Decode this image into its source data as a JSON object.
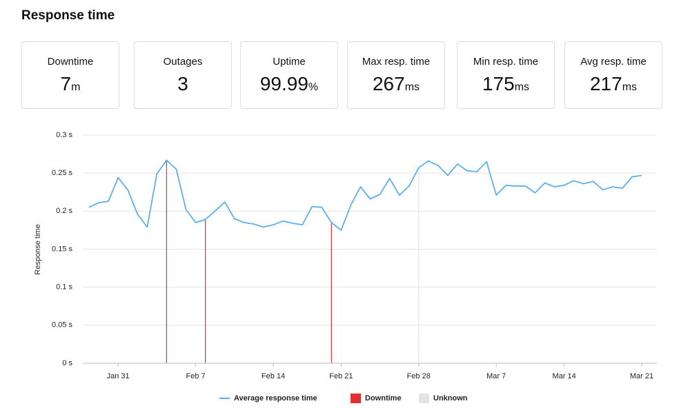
{
  "header": {
    "title": "Response time"
  },
  "stats": [
    {
      "label": "Downtime",
      "value": "7",
      "unit": "m"
    },
    {
      "label": "Outages",
      "value": "3",
      "unit": null
    },
    {
      "label": "Uptime",
      "value": "99.99",
      "unit": "%"
    },
    {
      "label": "Max resp. time",
      "value": "267",
      "unit": "ms"
    },
    {
      "label": "Min resp. time",
      "value": "175",
      "unit": "ms"
    },
    {
      "label": "Avg resp. time",
      "value": "217",
      "unit": "ms"
    }
  ],
  "chart_data": {
    "type": "line",
    "y_label": "Response time",
    "grid": true,
    "categories": [
      null,
      null,
      null,
      "Jan 31",
      null,
      null,
      null,
      null,
      null,
      null,
      null,
      "Feb 7",
      null,
      null,
      null,
      null,
      null,
      null,
      null,
      "Feb 14",
      null,
      null,
      null,
      null,
      null,
      null,
      "Feb 21",
      null,
      null,
      null,
      null,
      null,
      null,
      null,
      "Feb 28",
      null,
      null,
      null,
      null,
      null,
      null,
      null,
      "Mar 7",
      null,
      null,
      null,
      null,
      null,
      null,
      "Mar 14",
      null,
      null,
      null,
      null,
      null,
      null,
      null,
      "Mar 21"
    ],
    "ylim": [
      0,
      0.3
    ],
    "yticks": [
      {
        "value": 0,
        "label": "0 s"
      },
      {
        "value": 0.05,
        "label": "0.05 s"
      },
      {
        "value": 0.1,
        "label": "0.1 s"
      },
      {
        "value": 0.15,
        "label": "0.15 s"
      },
      {
        "value": 0.2,
        "label": "0.2 s"
      },
      {
        "value": 0.25,
        "label": "0.25 s"
      },
      {
        "value": 0.3,
        "label": "0.3 s"
      }
    ],
    "series": [
      {
        "name": "Average response time",
        "color": "#5aaff0",
        "style": "line",
        "values": [
          0.205,
          0.211,
          0.213,
          0.244,
          0.228,
          0.196,
          0.179,
          0.249,
          0.267,
          0.255,
          0.202,
          0.185,
          0.189,
          0.2,
          0.212,
          0.19,
          0.185,
          0.183,
          0.179,
          0.182,
          0.187,
          0.184,
          0.182,
          0.206,
          0.205,
          0.185,
          0.175,
          0.208,
          0.232,
          0.216,
          0.222,
          0.243,
          0.221,
          0.233,
          0.257,
          0.266,
          0.26,
          0.247,
          0.262,
          0.253,
          0.252,
          0.265,
          0.221,
          0.234,
          0.233,
          0.233,
          0.224,
          0.237,
          0.232,
          0.234,
          0.24,
          0.236,
          0.239,
          0.228,
          0.232,
          0.23,
          0.245,
          0.247
        ]
      },
      {
        "name": "Downtime",
        "color": "#e0302f",
        "style": "event",
        "values": [
          null,
          null,
          null,
          null,
          null,
          null,
          null,
          null,
          0.267,
          null,
          null,
          null,
          0.189,
          null,
          null,
          null,
          null,
          null,
          null,
          null,
          null,
          null,
          null,
          null,
          null,
          0.185,
          null,
          null,
          null,
          null,
          null,
          null,
          null,
          null,
          null,
          null,
          null,
          null,
          null,
          null,
          null,
          null,
          null,
          null,
          null,
          null,
          null,
          null,
          null,
          null,
          null,
          null,
          null,
          null,
          null,
          null,
          null,
          null
        ]
      },
      {
        "name": "Unknown",
        "color": "#e4e4e4",
        "style": "event",
        "values": [
          null,
          null,
          null,
          null,
          null,
          null,
          null,
          null,
          null,
          null,
          null,
          null,
          null,
          null,
          null,
          null,
          null,
          null,
          null,
          null,
          null,
          null,
          null,
          null,
          null,
          null,
          null,
          null,
          null,
          null,
          null,
          null,
          null,
          null,
          0.257,
          null,
          null,
          null,
          null,
          null,
          null,
          null,
          null,
          null,
          null,
          null,
          null,
          null,
          null,
          null,
          null,
          null,
          null,
          null,
          null,
          null,
          null,
          null
        ]
      }
    ]
  }
}
